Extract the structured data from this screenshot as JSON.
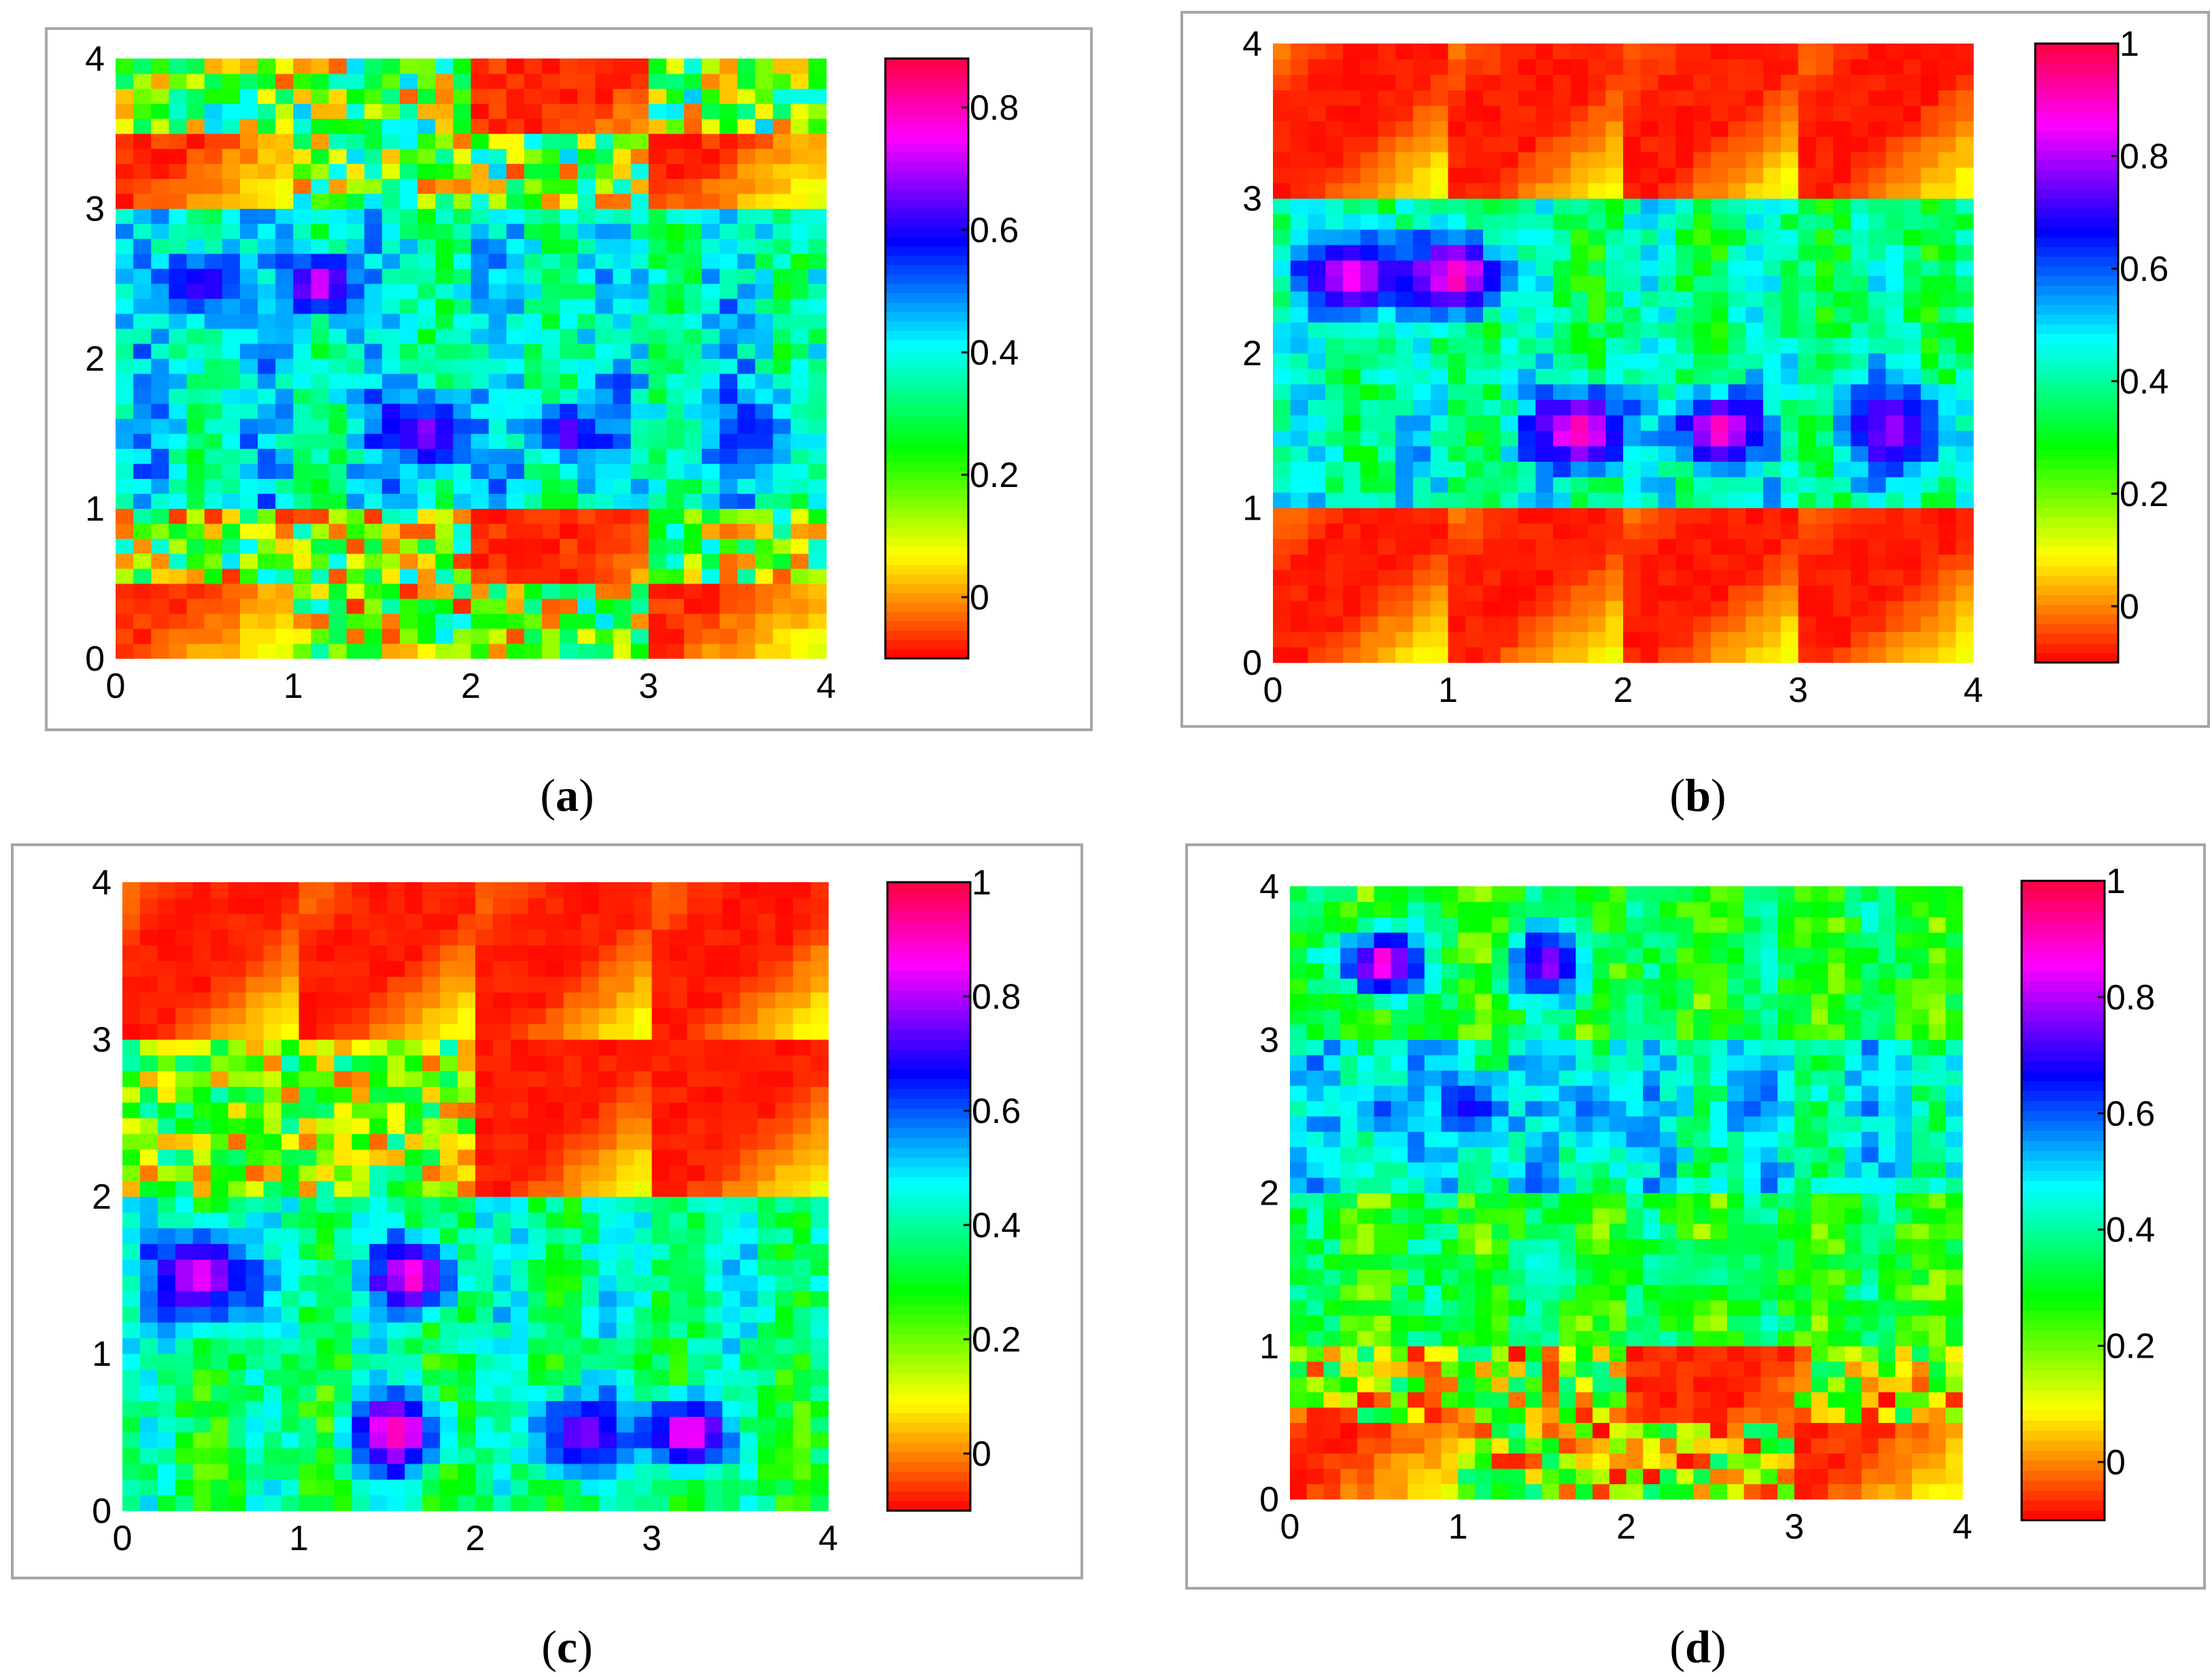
{
  "chart_data": [
    {
      "type": "heatmap",
      "panel_label": "a",
      "grid_size": 40,
      "xlim": [
        0,
        4
      ],
      "ylim": [
        0,
        4
      ],
      "xticks": [
        "0",
        "1",
        "2",
        "3",
        "4"
      ],
      "yticks": [
        "0",
        "1",
        "2",
        "3",
        "4"
      ],
      "colorbar": {
        "range": [
          -0.1,
          0.88
        ],
        "ticks": [
          "0",
          "0.2",
          "0.4",
          "0.6",
          "0.8"
        ],
        "tick_values": [
          0,
          0.2,
          0.4,
          0.6,
          0.8
        ]
      },
      "colormap": "red-yellow-green-cyan-blue-magenta-red",
      "structure": {
        "row_bands": [
          {
            "y": [
              0,
              1.0
            ],
            "kind": "mixed",
            "mean": 0.18
          },
          {
            "y": [
              1.0,
              2.0
            ],
            "kind": "patterned",
            "mean": 0.4,
            "spots": [
              {
                "x": 1.75,
                "y": 1.5,
                "value": 0.72,
                "radius": 0.35
              },
              {
                "x": 2.55,
                "y": 1.5,
                "value": 0.7,
                "radius": 0.28
              },
              {
                "x": 3.6,
                "y": 1.5,
                "value": 0.58,
                "radius": 0.4
              }
            ]
          },
          {
            "y": [
              2.0,
              3.0
            ],
            "kind": "patterned",
            "mean": 0.38,
            "spots": [
              {
                "x": 0.5,
                "y": 2.5,
                "value": 0.68,
                "radius": 0.35
              },
              {
                "x": 1.15,
                "y": 2.5,
                "value": 0.82,
                "radius": 0.3
              }
            ]
          },
          {
            "y": [
              3.0,
              4.0
            ],
            "kind": "mixed",
            "mean": 0.2
          }
        ]
      },
      "seed": 11
    },
    {
      "type": "heatmap",
      "panel_label": "b",
      "grid_size": 40,
      "xlim": [
        0,
        4
      ],
      "ylim": [
        0,
        4
      ],
      "xticks": [
        "0",
        "1",
        "2",
        "3",
        "4"
      ],
      "yticks": [
        "0",
        "1",
        "2",
        "3",
        "4"
      ],
      "colorbar": {
        "range": [
          -0.1,
          1.0
        ],
        "ticks": [
          "0",
          "0.2",
          "0.4",
          "0.6",
          "0.8",
          "1"
        ],
        "tick_values": [
          0,
          0.2,
          0.4,
          0.6,
          0.8,
          1.0
        ]
      },
      "colormap": "red-yellow-green-cyan-blue-magenta-red",
      "structure": {
        "row_bands": [
          {
            "y": [
              0,
              1.0
            ],
            "kind": "diagonal",
            "mean": 0.1
          },
          {
            "y": [
              1.0,
              2.0
            ],
            "kind": "patterned",
            "mean": 0.42,
            "spots": [
              {
                "x": 1.75,
                "y": 1.5,
                "value": 0.98,
                "radius": 0.4
              },
              {
                "x": 2.55,
                "y": 1.5,
                "value": 0.98,
                "radius": 0.35
              },
              {
                "x": 3.55,
                "y": 1.5,
                "value": 0.82,
                "radius": 0.45
              }
            ]
          },
          {
            "y": [
              2.0,
              3.0
            ],
            "kind": "patterned",
            "mean": 0.38,
            "spots": [
              {
                "x": 0.45,
                "y": 2.5,
                "value": 0.92,
                "radius": 0.45
              },
              {
                "x": 1.05,
                "y": 2.5,
                "value": 0.98,
                "radius": 0.4
              }
            ]
          },
          {
            "y": [
              3.0,
              4.0
            ],
            "kind": "diagonal",
            "mean": 0.0
          }
        ]
      },
      "seed": 23
    },
    {
      "type": "heatmap",
      "panel_label": "c",
      "grid_size": 40,
      "xlim": [
        0,
        4
      ],
      "ylim": [
        0,
        4
      ],
      "xticks": [
        "0",
        "1",
        "2",
        "3",
        "4"
      ],
      "yticks": [
        "0",
        "1",
        "2",
        "3",
        "4"
      ],
      "colorbar": {
        "range": [
          -0.1,
          1.0
        ],
        "ticks": [
          "0",
          "0.2",
          "0.4",
          "0.6",
          "0.8",
          "1"
        ],
        "tick_values": [
          0,
          0.2,
          0.4,
          0.6,
          0.8,
          1.0
        ]
      },
      "colormap": "red-yellow-green-cyan-blue-magenta-red",
      "structure": {
        "row_bands": [
          {
            "y": [
              0,
              1.0
            ],
            "kind": "patterned",
            "mean": 0.35,
            "spots": [
              {
                "x": 1.55,
                "y": 0.5,
                "value": 0.98,
                "radius": 0.4
              },
              {
                "x": 2.6,
                "y": 0.5,
                "value": 0.82,
                "radius": 0.45
              },
              {
                "x": 3.2,
                "y": 0.5,
                "value": 0.98,
                "radius": 0.35
              }
            ]
          },
          {
            "y": [
              1.0,
              2.0
            ],
            "kind": "patterned",
            "mean": 0.4,
            "spots": [
              {
                "x": 0.45,
                "y": 1.5,
                "value": 0.9,
                "radius": 0.45
              },
              {
                "x": 1.65,
                "y": 1.5,
                "value": 0.96,
                "radius": 0.35
              }
            ]
          },
          {
            "y": [
              2.0,
              3.0
            ],
            "kind": "mixed-diagonal",
            "mean": 0.2
          },
          {
            "y": [
              3.0,
              4.0
            ],
            "kind": "diagonal",
            "mean": 0.0
          }
        ]
      },
      "seed": 37
    },
    {
      "type": "heatmap",
      "panel_label": "d",
      "grid_size": 40,
      "xlim": [
        0,
        4
      ],
      "ylim": [
        0,
        4
      ],
      "xticks": [
        "0",
        "1",
        "2",
        "3",
        "4"
      ],
      "yticks": [
        "0",
        "1",
        "2",
        "3",
        "4"
      ],
      "colorbar": {
        "range": [
          -0.1,
          1.0
        ],
        "ticks": [
          "0",
          "0.2",
          "0.4",
          "0.6",
          "0.8",
          "1"
        ],
        "tick_values": [
          0,
          0.2,
          0.4,
          0.6,
          0.8,
          1.0
        ]
      },
      "colormap": "red-yellow-green-cyan-blue-magenta-red",
      "structure": {
        "row_bands": [
          {
            "y": [
              0,
              1.0
            ],
            "kind": "mixed",
            "mean": 0.15
          },
          {
            "y": [
              1.0,
              2.0
            ],
            "kind": "patterned",
            "mean": 0.3,
            "spots": [
              {
                "x": 1.5,
                "y": 1.5,
                "value": 0.48,
                "radius": 0.3
              },
              {
                "x": 2.5,
                "y": 1.5,
                "value": 0.45,
                "radius": 0.25
              }
            ]
          },
          {
            "y": [
              2.0,
              3.0
            ],
            "kind": "patterned",
            "mean": 0.45,
            "spots": [
              {
                "x": 0.55,
                "y": 2.55,
                "value": 0.62,
                "radius": 0.25
              },
              {
                "x": 1.1,
                "y": 2.55,
                "value": 0.72,
                "radius": 0.3
              },
              {
                "x": 1.8,
                "y": 2.55,
                "value": 0.62,
                "radius": 0.3
              },
              {
                "x": 2.75,
                "y": 2.55,
                "value": 0.6,
                "radius": 0.25
              }
            ]
          },
          {
            "y": [
              3.0,
              4.0
            ],
            "kind": "patterned",
            "mean": 0.3,
            "spots": [
              {
                "x": 0.55,
                "y": 3.5,
                "value": 0.98,
                "radius": 0.35
              },
              {
                "x": 1.55,
                "y": 3.5,
                "value": 0.82,
                "radius": 0.4
              }
            ]
          }
        ]
      },
      "seed": 53
    }
  ],
  "captions": [
    {
      "open": "(",
      "letter": "a",
      "close": ")"
    },
    {
      "open": "(",
      "letter": "b",
      "close": ")"
    },
    {
      "open": "(",
      "letter": "c",
      "close": ")"
    },
    {
      "open": "(",
      "letter": "d",
      "close": ")"
    }
  ]
}
